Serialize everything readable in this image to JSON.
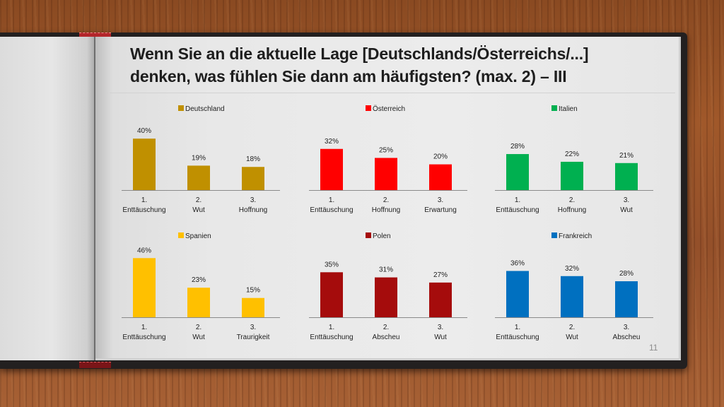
{
  "slide": {
    "title_line1": "Wenn Sie an die aktuelle Lage [Deutschlands/Österreichs/...]",
    "title_line2": "denken, was fühlen Sie dann am häufigsten? (max. 2) – III",
    "page_number": "11"
  },
  "chart_data": [
    {
      "type": "bar",
      "title": "Wenn Sie an die aktuelle Lage [Deutschlands/Österreichs/...] denken, was fühlen Sie dann am häufigsten? (max. 2) – III",
      "legend": "Deutschland",
      "legend_position": "top-center",
      "color": "#c09000",
      "categories": [
        "1. Enttäuschung",
        "2. Wut",
        "3. Hoffnung"
      ],
      "category_lines": [
        [
          "1.",
          "Enttäuschung"
        ],
        [
          "2.",
          "Wut"
        ],
        [
          "3.",
          "Hoffnung"
        ]
      ],
      "values": [
        40,
        19,
        18
      ],
      "value_labels": [
        "40%",
        "19%",
        "18%"
      ],
      "unit": "%",
      "ylim": [
        0,
        50
      ],
      "grid": false
    },
    {
      "type": "bar",
      "legend": "Österreich",
      "legend_position": "top-center",
      "color": "#ff0000",
      "categories": [
        "1. Enttäuschung",
        "2. Hoffnung",
        "3. Erwartung"
      ],
      "category_lines": [
        [
          "1.",
          "Enttäuschung"
        ],
        [
          "2.",
          "Hoffnung"
        ],
        [
          "3.",
          "Erwartung"
        ]
      ],
      "values": [
        32,
        25,
        20
      ],
      "value_labels": [
        "32%",
        "25%",
        "20%"
      ],
      "unit": "%",
      "ylim": [
        0,
        50
      ],
      "grid": false
    },
    {
      "type": "bar",
      "legend": "Italien",
      "legend_position": "top-center",
      "color": "#00b050",
      "categories": [
        "1. Enttäuschung",
        "2. Hoffnung",
        "3. Wut"
      ],
      "category_lines": [
        [
          "1.",
          "Enttäuschung"
        ],
        [
          "2.",
          "Hoffnung"
        ],
        [
          "3.",
          "Wut"
        ]
      ],
      "values": [
        28,
        22,
        21
      ],
      "value_labels": [
        "28%",
        "22%",
        "21%"
      ],
      "unit": "%",
      "ylim": [
        0,
        50
      ],
      "grid": false
    },
    {
      "type": "bar",
      "legend": "Spanien",
      "legend_position": "top-center",
      "color": "#ffc000",
      "categories": [
        "1. Enttäuschung",
        "2. Wut",
        "3. Traurigkeit"
      ],
      "category_lines": [
        [
          "1.",
          "Enttäuschung"
        ],
        [
          "2.",
          "Wut"
        ],
        [
          "3.",
          "Traurigkeit"
        ]
      ],
      "values": [
        46,
        23,
        15
      ],
      "value_labels": [
        "46%",
        "23%",
        "15%"
      ],
      "unit": "%",
      "ylim": [
        0,
        50
      ],
      "grid": false
    },
    {
      "type": "bar",
      "legend": "Polen",
      "legend_position": "top-center",
      "color": "#a50c0c",
      "categories": [
        "1. Enttäuschung",
        "2. Abscheu",
        "3. Wut"
      ],
      "category_lines": [
        [
          "1.",
          "Enttäuschung"
        ],
        [
          "2.",
          "Abscheu"
        ],
        [
          "3.",
          "Wut"
        ]
      ],
      "values": [
        35,
        31,
        27
      ],
      "value_labels": [
        "35%",
        "31%",
        "27%"
      ],
      "unit": "%",
      "ylim": [
        0,
        50
      ],
      "grid": false
    },
    {
      "type": "bar",
      "legend": "Frankreich",
      "legend_position": "top-center",
      "color": "#0070c0",
      "categories": [
        "1. Enttäuschung",
        "2. Wut",
        "3. Abscheu"
      ],
      "category_lines": [
        [
          "1.",
          "Enttäuschung"
        ],
        [
          "2.",
          "Wut"
        ],
        [
          "3.",
          "Abscheu"
        ]
      ],
      "values": [
        36,
        32,
        28
      ],
      "value_labels": [
        "36%",
        "32%",
        "28%"
      ],
      "unit": "%",
      "ylim": [
        0,
        50
      ],
      "grid": false
    }
  ]
}
